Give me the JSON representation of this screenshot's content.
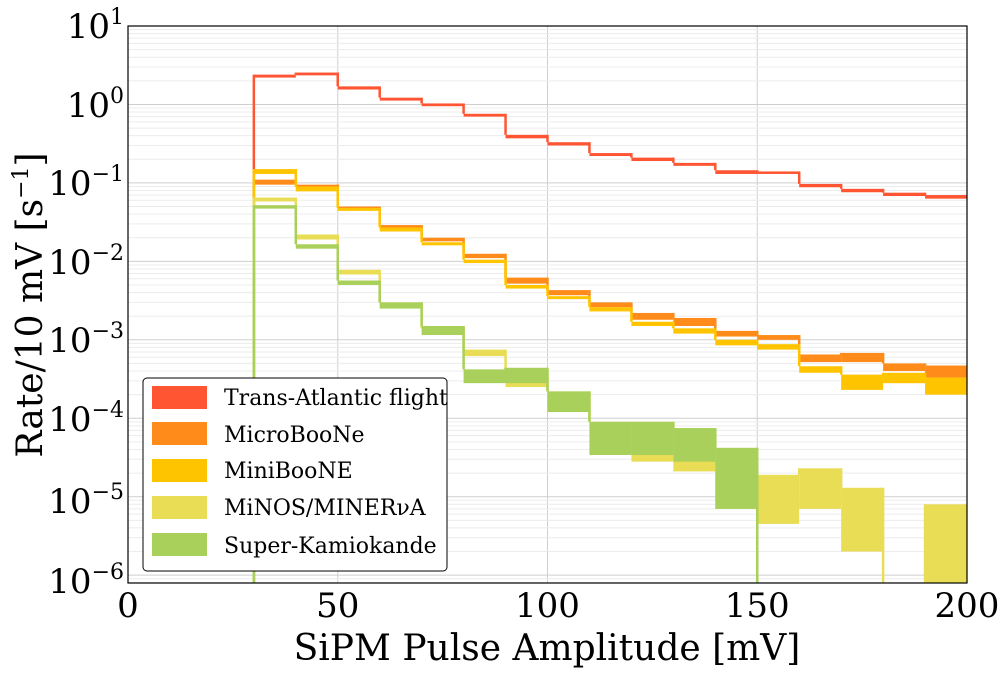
{
  "chart_data": {
    "type": "histogram",
    "xlabel": "SiPM Pulse Amplitude [mV]",
    "ylabel_main": "Rate/10 mV [s",
    "ylabel_sup": "−1",
    "ylabel_close": "]",
    "xlim": [
      0,
      200
    ],
    "ylim_log10": [
      -6.1,
      1
    ],
    "x_ticks": [
      0,
      50,
      100,
      150,
      200
    ],
    "x_tick_labels": [
      "0",
      "50",
      "100",
      "150",
      "200"
    ],
    "y_ticks_exp": [
      1,
      0,
      -1,
      -2,
      -3,
      -4,
      -5,
      -6
    ],
    "y_tick_base": "10",
    "y_tick_exps": [
      "1",
      "0",
      "−1",
      "−2",
      "−3",
      "−4",
      "−5",
      "−6"
    ],
    "grid": true,
    "legend_position": "bottom-left",
    "bin_edges": [
      30,
      40,
      50,
      60,
      70,
      80,
      90,
      100,
      110,
      120,
      130,
      140,
      150,
      160,
      170,
      180,
      190,
      200
    ],
    "series": [
      {
        "name": "Trans-Atlantic flight",
        "color": "#ff5533",
        "low": [
          2.2,
          2.35,
          1.55,
          1.12,
          0.95,
          0.7,
          0.37,
          0.3,
          0.22,
          0.19,
          0.165,
          0.13,
          0.13,
          0.088,
          0.076,
          0.068,
          0.063
        ],
        "high": [
          2.4,
          2.55,
          1.7,
          1.22,
          1.03,
          0.76,
          0.41,
          0.33,
          0.24,
          0.21,
          0.18,
          0.145,
          0.14,
          0.097,
          0.084,
          0.075,
          0.07
        ]
      },
      {
        "name": "MicroBooNe",
        "color": "#ff8c1a",
        "low": [
          0.095,
          0.085,
          0.045,
          0.026,
          0.018,
          0.011,
          0.0052,
          0.0037,
          0.0026,
          0.0018,
          0.0015,
          0.0011,
          0.001,
          0.00052,
          0.00052,
          0.0004,
          0.00033
        ],
        "high": [
          0.11,
          0.095,
          0.05,
          0.029,
          0.02,
          0.0125,
          0.0062,
          0.0043,
          0.003,
          0.0022,
          0.0019,
          0.0013,
          0.00115,
          0.00065,
          0.00068,
          0.0005,
          0.00047
        ]
      },
      {
        "name": "MiniBooNE",
        "color": "#ffc400",
        "low": [
          0.13,
          0.078,
          0.044,
          0.024,
          0.016,
          0.0095,
          0.0045,
          0.0033,
          0.0023,
          0.0015,
          0.0012,
          0.00085,
          0.00075,
          0.00038,
          0.00023,
          0.00028,
          0.0002
        ],
        "high": [
          0.15,
          0.09,
          0.048,
          0.027,
          0.0175,
          0.0105,
          0.005,
          0.0036,
          0.0026,
          0.0017,
          0.0014,
          0.001,
          0.00088,
          0.00046,
          0.00036,
          0.00038,
          0.00033
        ]
      },
      {
        "name": "MiNOS/MINERνA",
        "color": "#e8dd55",
        "low": [
          0.058,
          0.019,
          0.0068,
          0.0027,
          0.0012,
          0.00062,
          0.00025,
          0.00012,
          3.4e-05,
          2.8e-05,
          2.1e-05,
          7e-06,
          4.5e-06,
          7e-06,
          2e-06,
          1e-07,
          1e-07
        ],
        "high": [
          0.065,
          0.022,
          0.0078,
          0.003,
          0.0014,
          0.00075,
          0.00038,
          0.00022,
          9e-05,
          9e-05,
          6e-05,
          4e-05,
          1.9e-05,
          2.3e-05,
          1.3e-05,
          1e-07,
          8e-06
        ]
      },
      {
        "name": "Super-Kamiokande",
        "color": "#a8d05a",
        "low": [
          0.047,
          0.0145,
          0.005,
          0.0025,
          0.00115,
          0.00028,
          0.00028,
          0.00012,
          3.4e-05,
          3.4e-05,
          2.8e-05,
          7e-06,
          1e-07,
          1e-07,
          1e-07,
          1e-07,
          1e-07
        ],
        "high": [
          0.052,
          0.0165,
          0.0057,
          0.003,
          0.0015,
          0.00042,
          0.00044,
          0.00022,
          9e-05,
          9e-05,
          7.5e-05,
          4.2e-05,
          1e-07,
          1e-07,
          1e-07,
          1e-07,
          1e-07
        ]
      }
    ]
  }
}
